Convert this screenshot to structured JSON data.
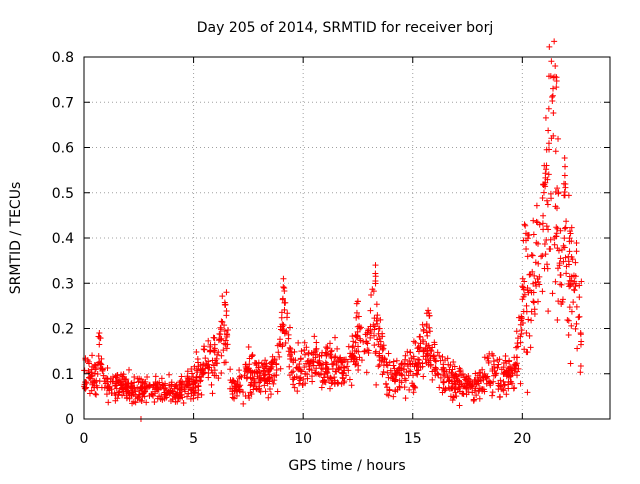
{
  "chart_data": {
    "type": "scatter",
    "title": "Day 205 of 2014, SRMTID for receiver borj",
    "xlabel": "GPS time / hours",
    "ylabel": "SRMTID / TECUs",
    "xlim": [
      0,
      24
    ],
    "ylim": [
      0,
      0.8
    ],
    "xticks": [
      0,
      5,
      10,
      15,
      20
    ],
    "xtick_labels": [
      "0",
      "5",
      "10",
      "15",
      "20"
    ],
    "yticks": [
      0,
      0.1,
      0.2,
      0.3,
      0.4,
      0.5,
      0.6,
      0.7,
      0.8
    ],
    "ytick_labels": [
      "0",
      "0.1",
      "0.2",
      "0.3",
      "0.4",
      "0.5",
      "0.6",
      "0.7",
      "0.8"
    ],
    "grid": true,
    "marker": "+",
    "series": [
      {
        "name": "SRMTID",
        "color": "#ff0000",
        "x_range": [
          0,
          22.7
        ],
        "profile": [
          [
            0.0,
            0.09
          ],
          [
            0.5,
            0.1
          ],
          [
            0.7,
            0.13
          ],
          [
            1.0,
            0.08
          ],
          [
            2.0,
            0.07
          ],
          [
            2.7,
            0.06
          ],
          [
            3.0,
            0.07
          ],
          [
            4.0,
            0.06
          ],
          [
            5.0,
            0.08
          ],
          [
            5.5,
            0.12
          ],
          [
            6.0,
            0.13
          ],
          [
            6.4,
            0.2
          ],
          [
            6.8,
            0.06
          ],
          [
            7.5,
            0.1
          ],
          [
            8.0,
            0.09
          ],
          [
            8.8,
            0.11
          ],
          [
            9.1,
            0.22
          ],
          [
            9.5,
            0.1
          ],
          [
            10.0,
            0.13
          ],
          [
            11.0,
            0.12
          ],
          [
            12.0,
            0.11
          ],
          [
            12.5,
            0.16
          ],
          [
            13.0,
            0.17
          ],
          [
            13.3,
            0.21
          ],
          [
            13.8,
            0.09
          ],
          [
            14.5,
            0.1
          ],
          [
            15.0,
            0.11
          ],
          [
            15.7,
            0.17
          ],
          [
            16.2,
            0.1
          ],
          [
            17.0,
            0.08
          ],
          [
            17.5,
            0.07
          ],
          [
            18.0,
            0.08
          ],
          [
            18.5,
            0.11
          ],
          [
            19.0,
            0.09
          ],
          [
            19.5,
            0.1
          ],
          [
            19.8,
            0.13
          ],
          [
            20.0,
            0.22
          ],
          [
            20.3,
            0.28
          ],
          [
            20.6,
            0.3
          ],
          [
            20.9,
            0.38
          ],
          [
            21.2,
            0.5
          ],
          [
            21.4,
            0.65
          ],
          [
            21.6,
            0.45
          ],
          [
            21.8,
            0.28
          ],
          [
            22.0,
            0.4
          ],
          [
            22.2,
            0.3
          ],
          [
            22.4,
            0.28
          ],
          [
            22.7,
            0.2
          ]
        ],
        "peaks": [
          [
            0.7,
            0.19
          ],
          [
            6.5,
            0.28
          ],
          [
            9.1,
            0.31
          ],
          [
            12.5,
            0.26
          ],
          [
            13.3,
            0.34
          ],
          [
            15.7,
            0.24
          ],
          [
            20.1,
            0.43
          ],
          [
            21.0,
            0.56
          ],
          [
            21.4,
            0.73
          ],
          [
            21.5,
            0.78
          ],
          [
            21.9,
            0.52
          ],
          [
            22.2,
            0.41
          ]
        ],
        "min_value": 0.0
      }
    ]
  }
}
